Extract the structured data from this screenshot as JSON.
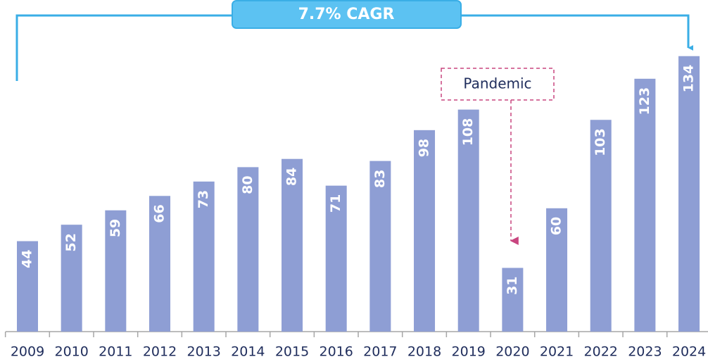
{
  "chart_data": {
    "type": "bar",
    "categories": [
      "2009",
      "2010",
      "2011",
      "2012",
      "2013",
      "2014",
      "2015",
      "2016",
      "2017",
      "2018",
      "2019",
      "2020",
      "2021",
      "2022",
      "2023",
      "2024"
    ],
    "values": [
      44,
      52,
      59,
      66,
      73,
      80,
      84,
      71,
      83,
      98,
      108,
      31,
      60,
      103,
      123,
      134
    ],
    "color": "#8e9ed4",
    "annotations": [
      "7.7% CAGR",
      "Pandemic"
    ]
  }
}
